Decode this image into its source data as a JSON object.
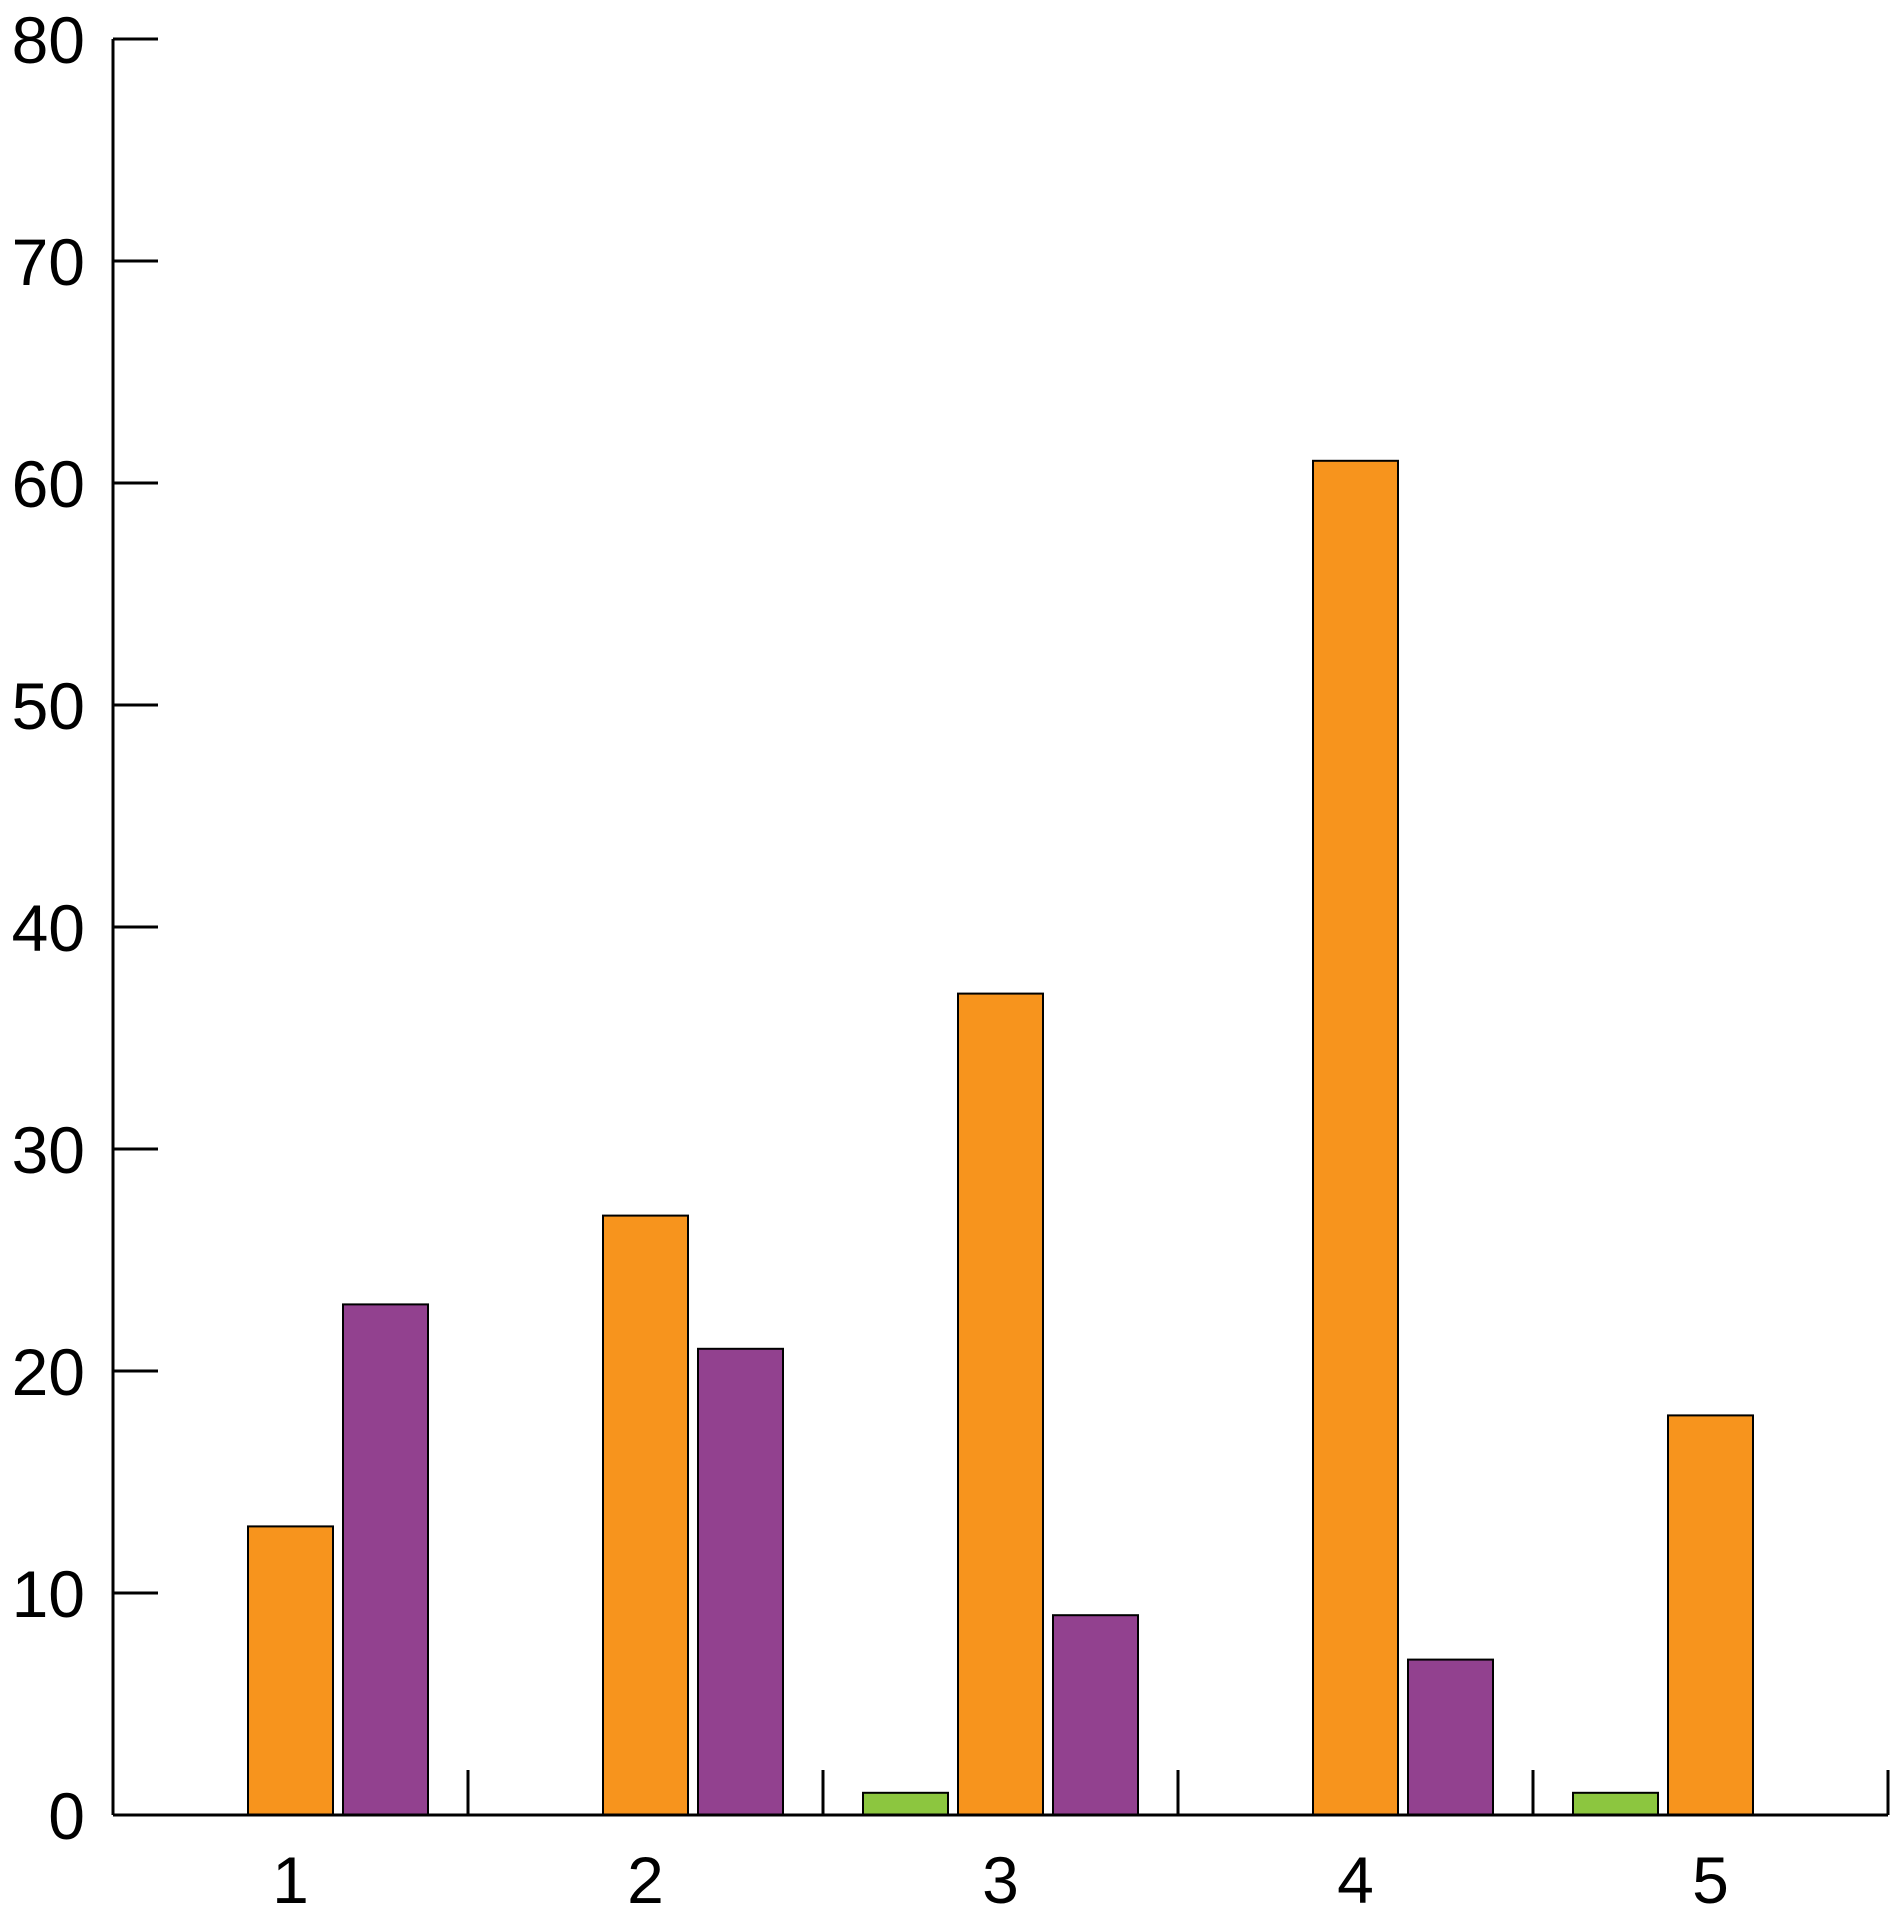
{
  "chart_data": {
    "type": "bar",
    "title": "",
    "xlabel": "",
    "ylabel": "",
    "categories": [
      "1",
      "2",
      "3",
      "4",
      "5"
    ],
    "ylim": [
      0,
      80
    ],
    "yticks": [
      "0",
      "10",
      "20",
      "30",
      "40",
      "50",
      "60",
      "70",
      "80"
    ],
    "grid": false,
    "legend": "none",
    "series": [
      {
        "color": "#8cc63f",
        "values": [
          0,
          0,
          1,
          0,
          1
        ]
      },
      {
        "color": "#f7941d",
        "values": [
          13,
          27,
          37,
          61,
          18
        ]
      },
      {
        "color": "#92418f",
        "values": [
          23,
          21,
          9,
          7,
          0
        ]
      }
    ]
  }
}
